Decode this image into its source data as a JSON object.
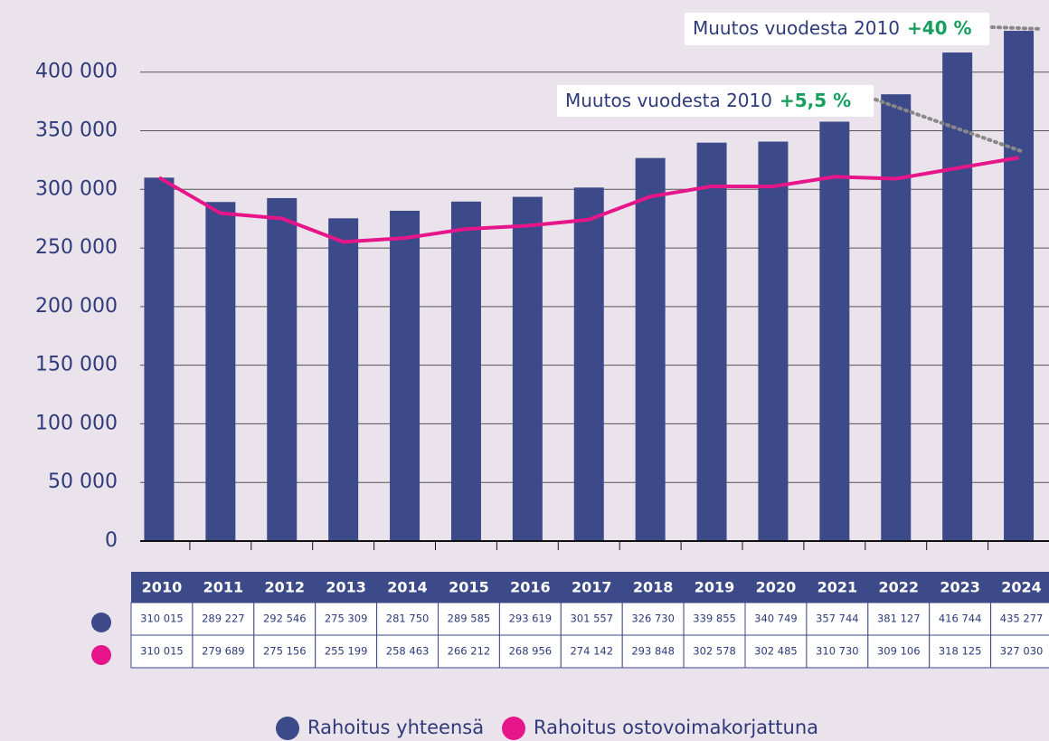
{
  "chart_data": {
    "type": "bar",
    "categories": [
      "2010",
      "2011",
      "2012",
      "2013",
      "2014",
      "2015",
      "2016",
      "2017",
      "2018",
      "2019",
      "2020",
      "2021",
      "2022",
      "2023",
      "2024"
    ],
    "series": [
      {
        "name": "Rahoitus yhteensä",
        "type": "bar",
        "color": "#3d4a8a",
        "values": [
          310015,
          289227,
          292546,
          275309,
          281750,
          289585,
          293619,
          301557,
          326730,
          339855,
          340749,
          357744,
          381127,
          416744,
          435277
        ],
        "value_labels": [
          "310 015",
          "289 227",
          "292 546",
          "275 309",
          "281 750",
          "289 585",
          "293 619",
          "301 557",
          "326 730",
          "339 855",
          "340 749",
          "357 744",
          "381 127",
          "416 744",
          "435 277"
        ]
      },
      {
        "name": "Rahoitus ostovoimakorjattuna",
        "type": "line",
        "color": "#e6168a",
        "values": [
          310015,
          279689,
          275156,
          255199,
          258463,
          266212,
          268956,
          274142,
          293848,
          302578,
          302485,
          310730,
          309106,
          318125,
          327030
        ],
        "value_labels": [
          "310 015",
          "279 689",
          "275 156",
          "255 199",
          "258 463",
          "266 212",
          "268 956",
          "274 142",
          "293 848",
          "302 578",
          "302 485",
          "310 730",
          "309 106",
          "318 125",
          "327 030"
        ]
      }
    ],
    "ylim": [
      0,
      460000
    ],
    "yticks": [
      0,
      {
        "value": 50000,
        "label": "50 000"
      },
      {
        "value": 100000,
        "label": "100 000"
      },
      {
        "value": 150000,
        "label": "150 000"
      },
      {
        "value": 200000,
        "label": "200 000"
      },
      {
        "value": 250000,
        "label": "250 000"
      },
      {
        "value": 300000,
        "label": "300 000"
      },
      {
        "value": 350000,
        "label": "350 000"
      },
      {
        "value": 400000,
        "label": "400 000"
      }
    ],
    "grid": true,
    "annotations": [
      {
        "text": "Muutos vuodesta 2010",
        "change": "+40 %"
      },
      {
        "text": "Muutos vuodesta 2010",
        "change": "+5,5 %"
      }
    ]
  }
}
